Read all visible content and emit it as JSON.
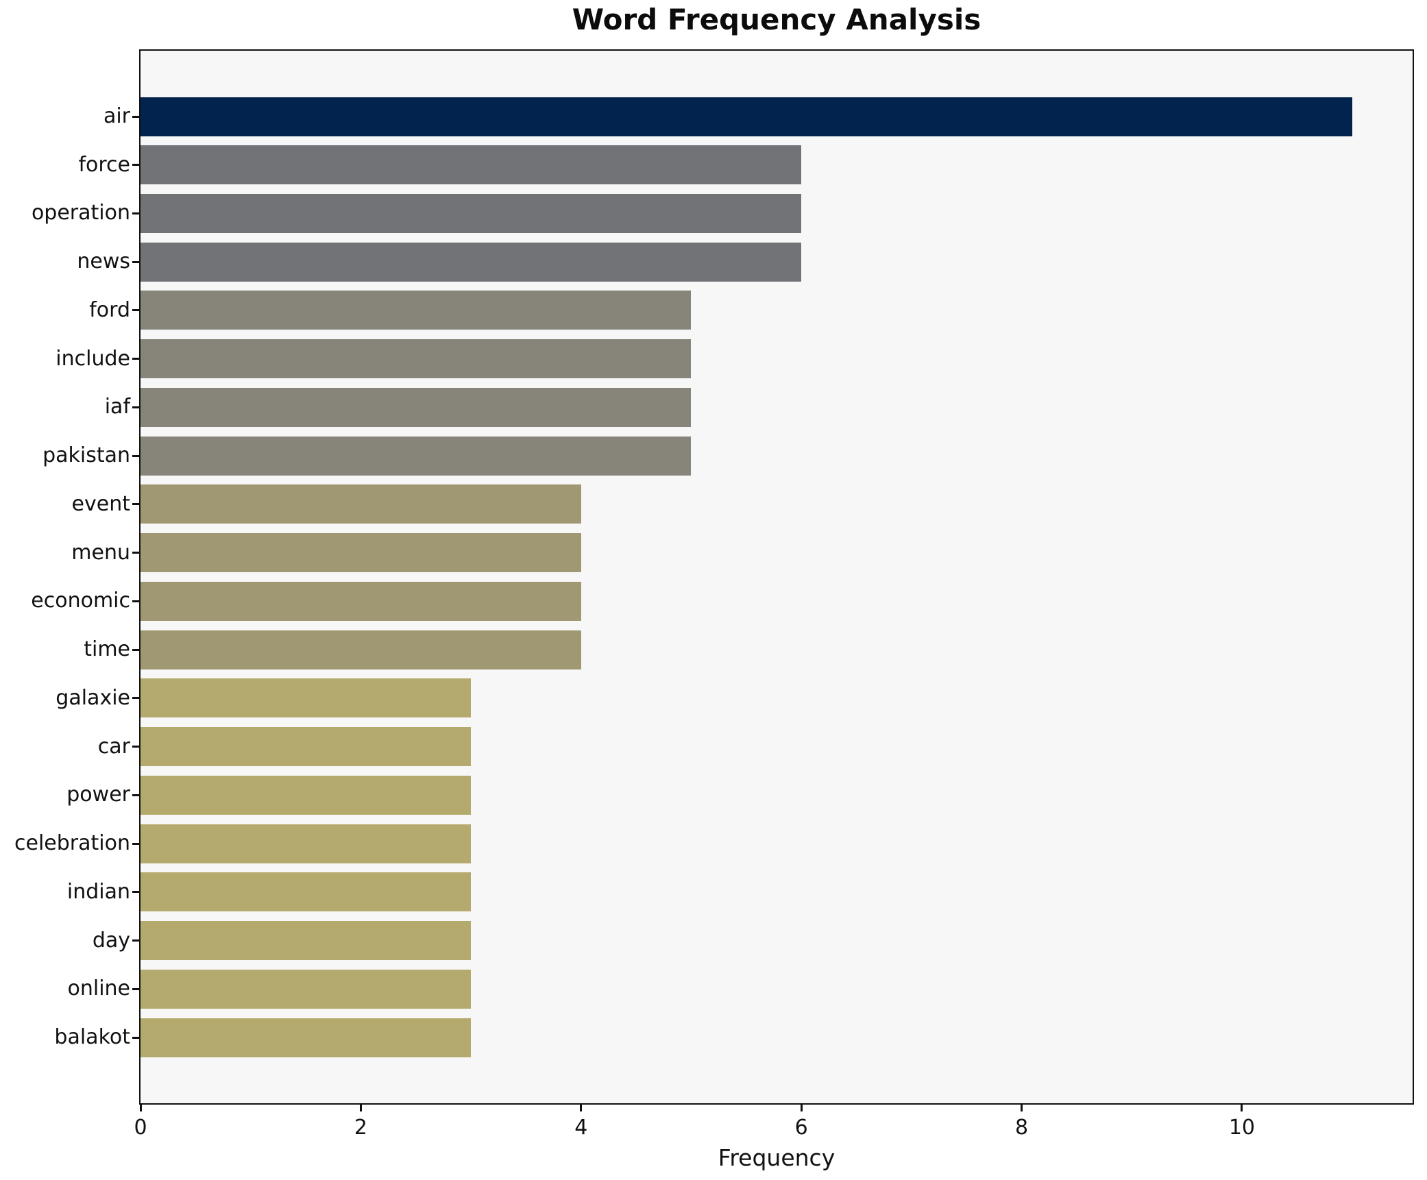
{
  "chart_data": {
    "type": "bar",
    "orientation": "horizontal",
    "title": "Word Frequency Analysis",
    "xlabel": "Frequency",
    "ylabel": "",
    "categories": [
      "air",
      "force",
      "operation",
      "news",
      "ford",
      "include",
      "iaf",
      "pakistan",
      "event",
      "menu",
      "economic",
      "time",
      "galaxie",
      "car",
      "power",
      "celebration",
      "indian",
      "day",
      "online",
      "balakot"
    ],
    "values": [
      11,
      6,
      6,
      6,
      5,
      5,
      5,
      5,
      4,
      4,
      4,
      4,
      3,
      3,
      3,
      3,
      3,
      3,
      3,
      3
    ],
    "bar_colors": [
      "#02234d",
      "#717376",
      "#717376",
      "#717376",
      "#87857a",
      "#87857a",
      "#87857a",
      "#87857a",
      "#a09873",
      "#a09873",
      "#a09873",
      "#a09873",
      "#b5aa6d",
      "#b5aa6d",
      "#b5aa6d",
      "#b5aa6d",
      "#b5aa6d",
      "#b5aa6d",
      "#b5aa6d",
      "#b5aa6d"
    ],
    "xlim": [
      0,
      11.55
    ],
    "xticks": [
      0,
      2,
      4,
      6,
      8,
      10
    ],
    "grid": false,
    "legend": "none",
    "plot_background": "#f7f7f8",
    "figure_background": "#ffffff",
    "spine_color": "#111111"
  }
}
